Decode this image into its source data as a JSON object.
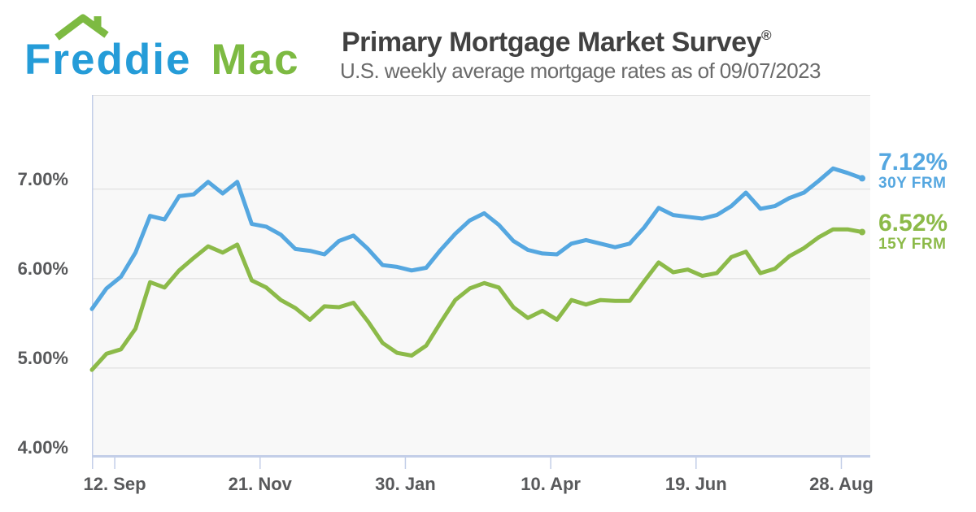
{
  "brand": {
    "logo_text_primary": "Freddie",
    "logo_text_secondary": "Mac",
    "logo_blue": "#259CD8",
    "logo_green": "#7DBA42"
  },
  "header": {
    "title": "Primary Mortgage Market Survey",
    "registered_mark": "®",
    "subtitle": "U.S. weekly average mortgage rates as of 09/07/2023"
  },
  "styles": {
    "page_bg": "#FFFFFF",
    "plot_bg": "#F8F8F8",
    "grid_color": "#E4E4E4",
    "axis_color": "#C3CEE8",
    "title_color": "#414141",
    "subtitle_color": "#6A6A6A",
    "axis_label_color": "#58595B"
  },
  "chart_data": {
    "type": "line",
    "title": "Primary Mortgage Market Survey",
    "subtitle": "U.S. weekly average mortgage rates as of 09/07/2023",
    "interval": "weekly",
    "x_start_date": "2022-09-01",
    "x_end_date": "2023-09-07",
    "span_days": 371,
    "grid": "horizontal",
    "legend_position": "right-end-labels",
    "ylim": [
      4,
      8.05
    ],
    "yticks": [
      {
        "label": "4.00%",
        "value": 4
      },
      {
        "label": "5.00%",
        "value": 5
      },
      {
        "label": "6.00%",
        "value": 6
      },
      {
        "label": "7.00%",
        "value": 7
      }
    ],
    "xticks": [
      {
        "label": "12. Sep",
        "day": 11
      },
      {
        "label": "21. Nov",
        "day": 81
      },
      {
        "label": "30. Jan",
        "day": 151
      },
      {
        "label": "10. Apr",
        "day": 221
      },
      {
        "label": "19. Jun",
        "day": 291
      },
      {
        "label": "28. Aug",
        "day": 361
      }
    ],
    "series": [
      {
        "name": "30Y FRM",
        "end_label": "7.12%",
        "color": "#55A7E0",
        "values": [
          5.66,
          5.89,
          6.02,
          6.29,
          6.7,
          6.66,
          6.92,
          6.94,
          7.08,
          6.95,
          7.08,
          6.61,
          6.58,
          6.49,
          6.33,
          6.31,
          6.27,
          6.42,
          6.48,
          6.33,
          6.15,
          6.13,
          6.09,
          6.12,
          6.32,
          6.5,
          6.65,
          6.73,
          6.6,
          6.42,
          6.32,
          6.28,
          6.27,
          6.39,
          6.43,
          6.39,
          6.35,
          6.39,
          6.57,
          6.79,
          6.71,
          6.69,
          6.67,
          6.71,
          6.81,
          6.96,
          6.78,
          6.81,
          6.9,
          6.96,
          7.09,
          7.23,
          7.18,
          7.12
        ]
      },
      {
        "name": "15Y FRM",
        "end_label": "6.52%",
        "color": "#8CBA49",
        "values": [
          4.98,
          5.16,
          5.21,
          5.44,
          5.96,
          5.9,
          6.09,
          6.23,
          6.36,
          6.29,
          6.38,
          5.98,
          5.9,
          5.76,
          5.67,
          5.54,
          5.69,
          5.68,
          5.73,
          5.52,
          5.28,
          5.17,
          5.14,
          5.25,
          5.51,
          5.76,
          5.89,
          5.95,
          5.9,
          5.68,
          5.56,
          5.64,
          5.54,
          5.76,
          5.71,
          5.76,
          5.75,
          5.75,
          5.97,
          6.18,
          6.07,
          6.1,
          6.03,
          6.06,
          6.24,
          6.3,
          6.06,
          6.11,
          6.25,
          6.34,
          6.46,
          6.55,
          6.55,
          6.52
        ]
      }
    ]
  }
}
